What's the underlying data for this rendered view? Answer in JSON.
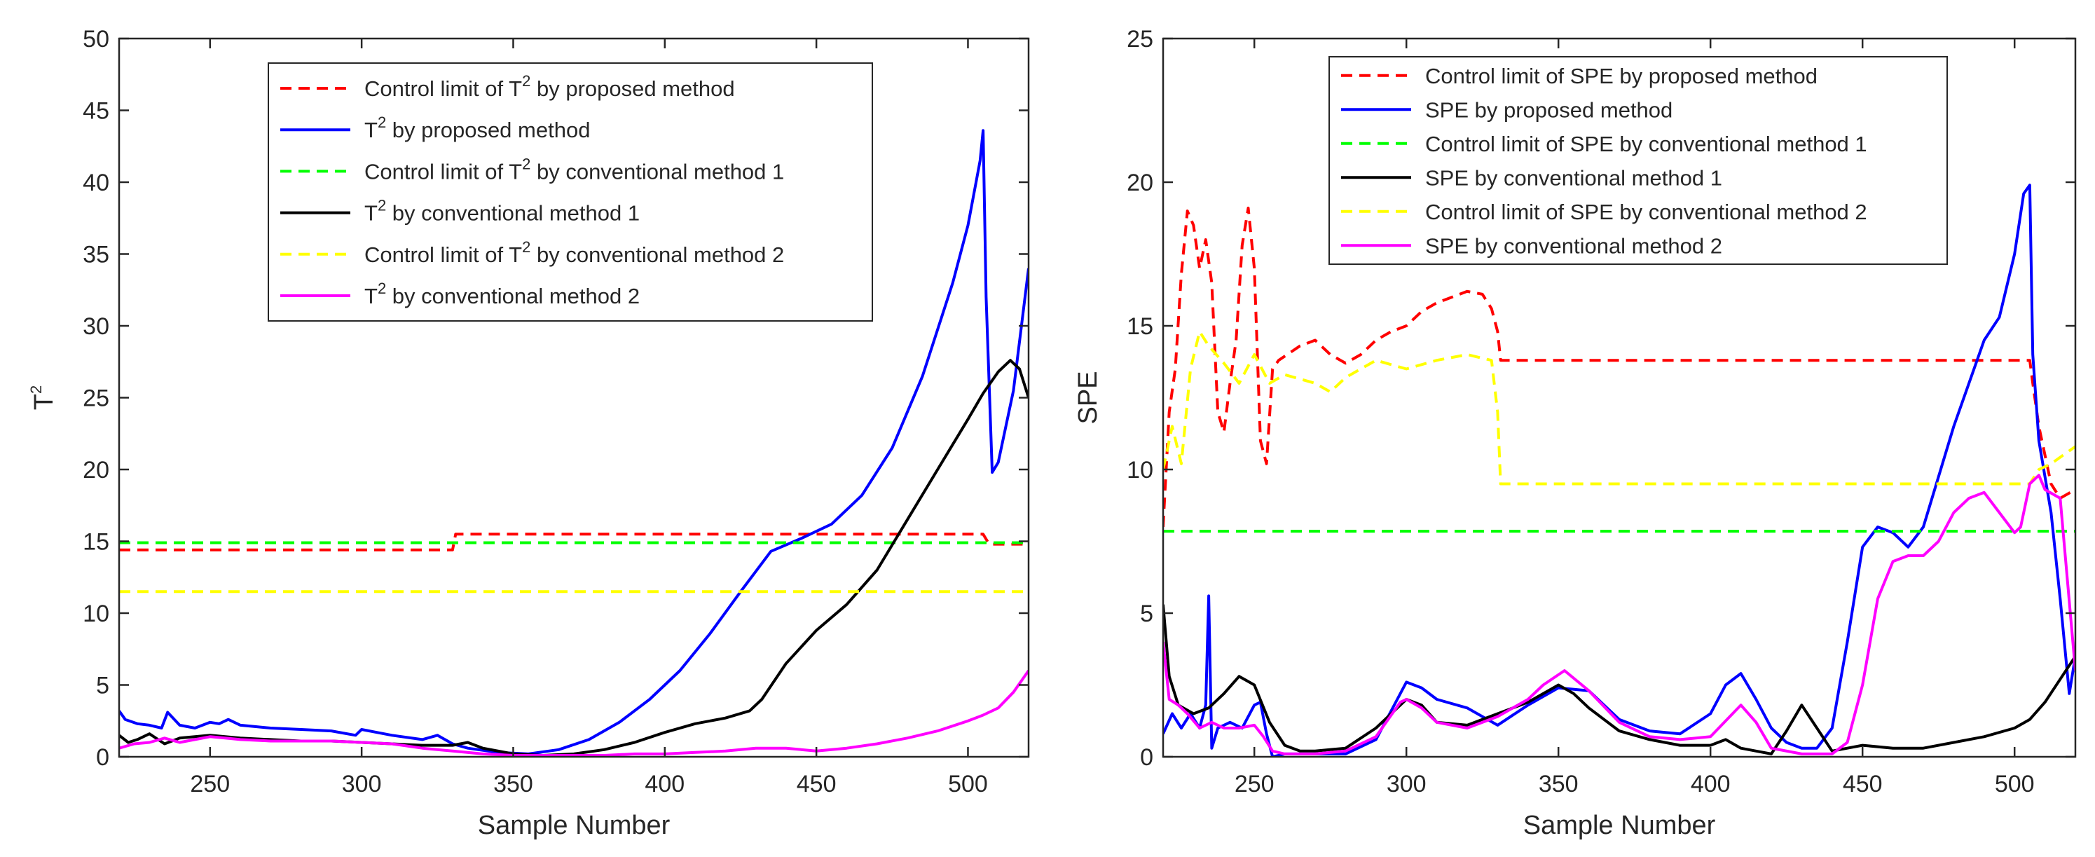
{
  "chart_data": [
    {
      "id": "t2",
      "type": "line",
      "xlabel": "Sample Number",
      "ylabel": "T",
      "ylabel_superscript": "2",
      "xlim": [
        220,
        520
      ],
      "ylim": [
        0,
        50
      ],
      "xticks": [
        250,
        300,
        350,
        400,
        450,
        500
      ],
      "yticks": [
        0,
        5,
        10,
        15,
        20,
        25,
        30,
        35,
        40,
        45,
        50
      ],
      "legend_location": "top-center",
      "series": [
        {
          "name": "Control limit of T2 by proposed method",
          "legend_parts": [
            "Control limit of T",
            "2",
            " by proposed method"
          ],
          "color": "#ff0000",
          "style": "dashed",
          "x": [
            220,
            330,
            331,
            505,
            507,
            520
          ],
          "y": [
            14.4,
            14.4,
            15.5,
            15.5,
            14.8,
            14.8
          ]
        },
        {
          "name": "T2 by proposed method",
          "legend_parts": [
            "T",
            "2",
            " by proposed method"
          ],
          "color": "#0000ff",
          "style": "solid",
          "x": [
            220,
            222,
            226,
            230,
            234,
            236,
            240,
            245,
            250,
            253,
            256,
            260,
            270,
            280,
            290,
            298,
            300,
            305,
            310,
            320,
            325,
            330,
            335,
            345,
            355,
            365,
            375,
            385,
            395,
            405,
            415,
            425,
            435,
            445,
            455,
            465,
            475,
            485,
            495,
            500,
            504,
            505,
            506,
            508,
            510,
            515,
            520
          ],
          "y": [
            3.2,
            2.6,
            2.3,
            2.2,
            2.0,
            3.1,
            2.2,
            2.0,
            2.4,
            2.3,
            2.6,
            2.2,
            2.0,
            1.9,
            1.8,
            1.5,
            1.9,
            1.7,
            1.5,
            1.2,
            1.5,
            0.9,
            0.6,
            0.3,
            0.2,
            0.5,
            1.2,
            2.4,
            4.0,
            6.0,
            8.6,
            11.5,
            14.3,
            15.2,
            16.2,
            18.2,
            21.5,
            26.5,
            33.0,
            37.0,
            41.5,
            43.6,
            32.0,
            19.8,
            20.5,
            25.5,
            34.0
          ]
        },
        {
          "name": "Control limit of T2 by conventional method 1",
          "legend_parts": [
            "Control limit of T",
            "2",
            " by conventional method 1"
          ],
          "color": "#00ff00",
          "style": "dashed",
          "x": [
            220,
            520
          ],
          "y": [
            14.9,
            14.9
          ]
        },
        {
          "name": "T2 by conventional method 1",
          "legend_parts": [
            "T",
            "2",
            " by conventional method 1"
          ],
          "color": "#000000",
          "style": "solid",
          "x": [
            220,
            223,
            226,
            230,
            235,
            240,
            245,
            250,
            255,
            260,
            270,
            280,
            290,
            300,
            310,
            320,
            330,
            335,
            340,
            350,
            360,
            370,
            380,
            390,
            400,
            410,
            420,
            428,
            432,
            440,
            450,
            460,
            470,
            480,
            490,
            500,
            505,
            510,
            514,
            517,
            520
          ],
          "y": [
            1.5,
            1.0,
            1.2,
            1.6,
            0.9,
            1.3,
            1.4,
            1.5,
            1.4,
            1.3,
            1.2,
            1.1,
            1.1,
            1.0,
            0.9,
            0.8,
            0.8,
            1.0,
            0.6,
            0.2,
            0.1,
            0.2,
            0.5,
            1.0,
            1.7,
            2.3,
            2.7,
            3.2,
            4.0,
            6.5,
            8.8,
            10.6,
            13.0,
            16.5,
            20.0,
            23.5,
            25.3,
            26.8,
            27.6,
            27.0,
            25.0
          ]
        },
        {
          "name": "Control limit of T2 by conventional method 2",
          "legend_parts": [
            "Control limit of T",
            "2",
            " by conventional method 2"
          ],
          "color": "#ffff00",
          "style": "dashed",
          "x": [
            220,
            520
          ],
          "y": [
            11.5,
            11.5
          ]
        },
        {
          "name": "T2 by conventional method 2",
          "legend_parts": [
            "T",
            "2",
            " by conventional method 2"
          ],
          "color": "#ff00ff",
          "style": "solid",
          "x": [
            220,
            225,
            230,
            235,
            240,
            245,
            250,
            255,
            260,
            270,
            280,
            290,
            300,
            310,
            320,
            330,
            340,
            350,
            360,
            370,
            380,
            390,
            400,
            410,
            420,
            430,
            440,
            450,
            460,
            470,
            480,
            490,
            500,
            505,
            510,
            515,
            520
          ],
          "y": [
            0.6,
            0.9,
            1.0,
            1.3,
            1.0,
            1.2,
            1.4,
            1.3,
            1.2,
            1.1,
            1.1,
            1.1,
            1.0,
            0.9,
            0.6,
            0.4,
            0.2,
            0.1,
            0.1,
            0.1,
            0.1,
            0.2,
            0.2,
            0.3,
            0.4,
            0.6,
            0.6,
            0.4,
            0.6,
            0.9,
            1.3,
            1.8,
            2.5,
            2.9,
            3.4,
            4.5,
            6.0
          ]
        }
      ]
    },
    {
      "id": "spe",
      "type": "line",
      "xlabel": "Sample Number",
      "ylabel": "SPE",
      "xlim": [
        220,
        520
      ],
      "ylim": [
        0,
        25
      ],
      "xticks": [
        250,
        300,
        350,
        400,
        450,
        500
      ],
      "yticks": [
        0,
        5,
        10,
        15,
        20,
        25
      ],
      "legend_location": "top-center",
      "series": [
        {
          "name": "Control limit of SPE by proposed method",
          "legend_parts": [
            "Control limit of SPE by proposed method"
          ],
          "color": "#ff0000",
          "style": "dashed",
          "x": [
            220,
            222,
            224,
            226,
            228,
            230,
            232,
            234,
            236,
            238,
            240,
            242,
            244,
            246,
            248,
            250,
            252,
            254,
            256,
            258,
            265,
            270,
            275,
            280,
            285,
            290,
            295,
            300,
            305,
            310,
            315,
            320,
            325,
            328,
            330,
            331,
            505,
            506,
            508,
            512,
            515,
            520
          ],
          "y": [
            8.0,
            12.0,
            13.5,
            16.8,
            19.0,
            18.5,
            17.0,
            18.0,
            16.5,
            12.0,
            11.3,
            13.0,
            14.5,
            17.8,
            19.1,
            17.0,
            11.0,
            10.2,
            13.5,
            13.8,
            14.3,
            14.5,
            14.0,
            13.7,
            14.0,
            14.5,
            14.8,
            15.0,
            15.5,
            15.8,
            16.0,
            16.2,
            16.1,
            15.6,
            14.8,
            13.8,
            13.8,
            13.0,
            11.5,
            9.5,
            9.0,
            9.3
          ]
        },
        {
          "name": "SPE by proposed method",
          "legend_parts": [
            "SPE by proposed method"
          ],
          "color": "#0000ff",
          "style": "solid",
          "x": [
            220,
            223,
            226,
            229,
            232,
            234,
            235,
            236,
            238,
            242,
            246,
            250,
            252,
            254,
            256,
            260,
            270,
            280,
            290,
            297,
            300,
            305,
            310,
            320,
            330,
            340,
            350,
            360,
            370,
            380,
            390,
            400,
            405,
            410,
            415,
            420,
            425,
            430,
            435,
            440,
            445,
            450,
            455,
            460,
            465,
            470,
            480,
            490,
            495,
            500,
            503,
            505,
            506,
            508,
            512,
            515,
            518,
            520
          ],
          "y": [
            0.8,
            1.5,
            1.0,
            1.5,
            1.0,
            1.8,
            5.6,
            0.3,
            1.0,
            1.2,
            1.0,
            1.8,
            1.9,
            0.8,
            0.0,
            0.1,
            0.1,
            0.1,
            0.6,
            2.0,
            2.6,
            2.4,
            2.0,
            1.7,
            1.1,
            1.8,
            2.4,
            2.3,
            1.3,
            0.9,
            0.8,
            1.5,
            2.5,
            2.9,
            2.0,
            1.0,
            0.5,
            0.3,
            0.3,
            1.0,
            4.0,
            7.3,
            8.0,
            7.8,
            7.3,
            8.0,
            11.5,
            14.5,
            15.3,
            17.5,
            19.6,
            19.9,
            14.0,
            11.0,
            8.5,
            5.5,
            2.2,
            3.5
          ]
        },
        {
          "name": "Control limit of SPE by conventional method 1",
          "legend_parts": [
            "Control limit of SPE by conventional method 1"
          ],
          "color": "#00ff00",
          "style": "dashed",
          "x": [
            220,
            520
          ],
          "y": [
            7.85,
            7.85
          ]
        },
        {
          "name": "SPE by conventional method 1",
          "legend_parts": [
            "SPE by conventional method 1"
          ],
          "color": "#000000",
          "style": "solid",
          "x": [
            220,
            222,
            225,
            230,
            235,
            240,
            245,
            250,
            255,
            260,
            265,
            270,
            280,
            290,
            300,
            305,
            310,
            320,
            330,
            340,
            350,
            355,
            360,
            370,
            380,
            390,
            400,
            405,
            410,
            415,
            420,
            425,
            430,
            435,
            440,
            445,
            450,
            460,
            470,
            480,
            490,
            500,
            505,
            510,
            515,
            520
          ],
          "y": [
            5.3,
            2.8,
            1.8,
            1.5,
            1.7,
            2.2,
            2.8,
            2.5,
            1.2,
            0.4,
            0.2,
            0.2,
            0.3,
            1.0,
            2.0,
            1.8,
            1.2,
            1.1,
            1.5,
            1.9,
            2.5,
            2.2,
            1.7,
            0.9,
            0.6,
            0.4,
            0.4,
            0.6,
            0.3,
            0.2,
            0.1,
            0.9,
            1.8,
            1.0,
            0.2,
            0.3,
            0.4,
            0.3,
            0.3,
            0.5,
            0.7,
            1.0,
            1.3,
            1.9,
            2.7,
            3.5
          ]
        },
        {
          "name": "Control limit of SPE by conventional method 2",
          "legend_parts": [
            "Control limit of SPE by conventional method 2"
          ],
          "color": "#ffff00",
          "style": "dashed",
          "x": [
            220,
            223,
            226,
            229,
            232,
            235,
            240,
            245,
            250,
            255,
            260,
            270,
            275,
            280,
            290,
            300,
            310,
            320,
            328,
            330,
            331,
            500,
            505,
            508,
            512,
            516,
            520
          ],
          "y": [
            10.0,
            11.5,
            10.2,
            13.5,
            14.8,
            14.3,
            13.7,
            13.0,
            14.0,
            13.0,
            13.3,
            13.0,
            12.7,
            13.2,
            13.8,
            13.5,
            13.8,
            14.0,
            13.8,
            12.0,
            9.5,
            9.5,
            9.5,
            10.0,
            10.2,
            10.5,
            10.8
          ]
        },
        {
          "name": "SPE by conventional method 2",
          "legend_parts": [
            "SPE by conventional method 2"
          ],
          "color": "#ff00ff",
          "style": "solid",
          "x": [
            220,
            222,
            225,
            228,
            232,
            236,
            240,
            245,
            250,
            253,
            256,
            260,
            270,
            280,
            290,
            298,
            300,
            305,
            310,
            320,
            330,
            340,
            345,
            352,
            360,
            370,
            380,
            390,
            400,
            410,
            415,
            420,
            430,
            440,
            445,
            450,
            455,
            460,
            465,
            470,
            475,
            480,
            485,
            490,
            495,
            500,
            502,
            505,
            508,
            510,
            515,
            520
          ],
          "y": [
            4.0,
            2.0,
            1.8,
            1.5,
            1.0,
            1.2,
            1.0,
            1.0,
            1.1,
            0.7,
            0.2,
            0.1,
            0.1,
            0.2,
            0.7,
            1.9,
            2.0,
            1.7,
            1.2,
            1.0,
            1.4,
            2.0,
            2.5,
            3.0,
            2.3,
            1.2,
            0.7,
            0.6,
            0.7,
            1.8,
            1.2,
            0.3,
            0.1,
            0.1,
            0.5,
            2.5,
            5.5,
            6.8,
            7.0,
            7.0,
            7.5,
            8.5,
            9.0,
            9.2,
            8.5,
            7.8,
            8.0,
            9.5,
            9.8,
            9.3,
            9.0,
            3.0
          ]
        }
      ]
    }
  ]
}
